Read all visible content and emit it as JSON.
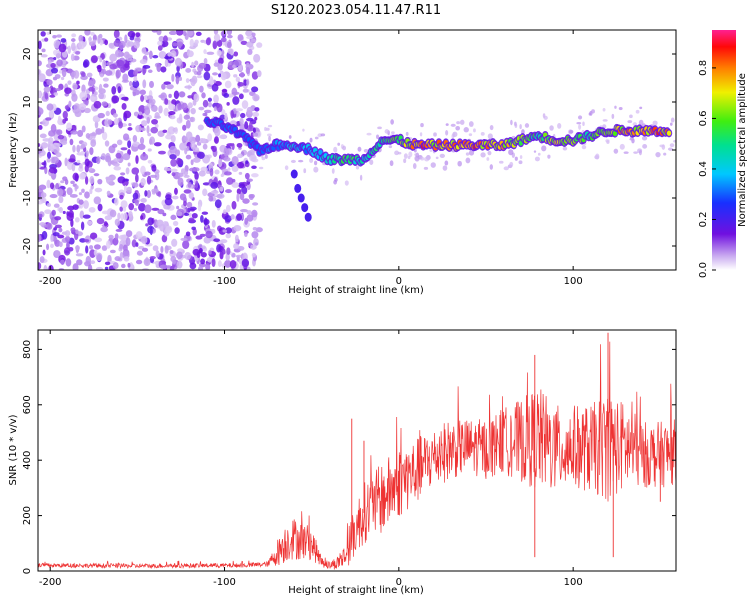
{
  "title": "S120.2023.054.11.47.R11",
  "chart_data": [
    {
      "type": "heatmap",
      "xlabel": "Height of straight line (km)",
      "ylabel": "Frequency (Hz)",
      "xlim": [
        -207,
        159
      ],
      "ylim": [
        -25,
        25
      ],
      "xticks": [
        -200,
        -100,
        0,
        100
      ],
      "yticks": [
        -20,
        -10,
        0,
        10,
        20
      ],
      "colorbar": {
        "label": "Normalized spectral amplitude",
        "lim": [
          0,
          0.95
        ],
        "ticks": [
          "0.0",
          "0.2",
          "0.4",
          "0.6",
          "0.8"
        ],
        "colormap": "rainbow (white/purple low → red/pink high)"
      },
      "ridge": {
        "x": [
          -110,
          -100,
          -90,
          -80,
          -70,
          -60,
          -50,
          -40,
          -30,
          -20,
          -10,
          0,
          10,
          20,
          30,
          40,
          50,
          60,
          70,
          80,
          90,
          100,
          110,
          120,
          130,
          140,
          155
        ],
        "frequency": [
          6,
          5,
          3,
          0,
          1,
          1,
          0,
          -2,
          -2,
          -2,
          2,
          2,
          1,
          1,
          1,
          1,
          1,
          1,
          2,
          3,
          2,
          2,
          3,
          4,
          4,
          4,
          4
        ],
        "amplitude": [
          0.3,
          0.35,
          0.3,
          0.3,
          0.4,
          0.45,
          0.4,
          0.55,
          0.6,
          0.5,
          0.55,
          0.7,
          0.9,
          0.85,
          0.9,
          0.9,
          0.85,
          0.8,
          0.7,
          0.6,
          0.8,
          0.7,
          0.6,
          0.75,
          0.85,
          0.9,
          0.9
        ]
      },
      "branch": {
        "x": [
          -60,
          -58,
          -56,
          -54,
          -52
        ],
        "frequency": [
          -5,
          -8,
          -10,
          -12,
          -14
        ]
      },
      "noise_region": {
        "x_range": [
          -207,
          -80
        ],
        "frequency_range": [
          -25,
          25
        ]
      }
    },
    {
      "type": "line",
      "xlabel": "Height of straight line (km)",
      "ylabel": "SNR (10 * v/v)",
      "xlim": [
        -207,
        159
      ],
      "ylim": [
        0,
        870
      ],
      "xticks": [
        -200,
        -100,
        0,
        100
      ],
      "yticks": [
        0,
        200,
        400,
        600,
        800
      ],
      "color": "#ee3333",
      "series": [
        {
          "x": [
            -207,
            -180,
            -150,
            -120,
            -90,
            -75,
            -68,
            -62,
            -55,
            -50,
            -45,
            -40,
            -35,
            -30,
            -25,
            -20,
            -10,
            0,
            10,
            20,
            30,
            40,
            50,
            60,
            70,
            80,
            90,
            100,
            110,
            120,
            130,
            140,
            150,
            159
          ],
          "y": [
            20,
            20,
            18,
            20,
            20,
            25,
            80,
            120,
            110,
            100,
            40,
            20,
            30,
            60,
            150,
            210,
            260,
            320,
            360,
            410,
            440,
            450,
            440,
            470,
            470,
            480,
            440,
            450,
            440,
            450,
            450,
            420,
            420,
            430
          ],
          "spread": [
            8,
            8,
            8,
            8,
            8,
            10,
            60,
            80,
            70,
            60,
            25,
            15,
            25,
            50,
            100,
            110,
            130,
            130,
            120,
            110,
            110,
            100,
            110,
            120,
            150,
            190,
            160,
            150,
            160,
            200,
            160,
            120,
            120,
            120
          ]
        }
      ],
      "spikes": [
        {
          "x": -27,
          "y": 550
        },
        {
          "x": -20,
          "y": 470
        },
        {
          "x": 78,
          "y": 780
        },
        {
          "x": 120,
          "y": 860
        },
        {
          "x": 123,
          "y": 50
        },
        {
          "x": 78,
          "y": 50
        },
        {
          "x": 150,
          "y": 250
        }
      ]
    }
  ]
}
